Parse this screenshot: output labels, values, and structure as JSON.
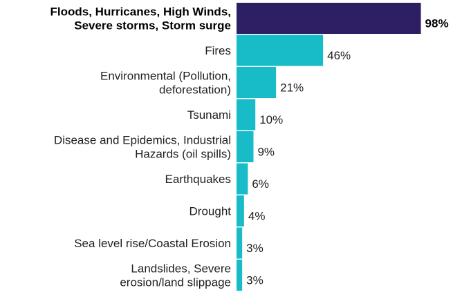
{
  "chart_data": {
    "type": "bar",
    "orientation": "horizontal",
    "categories": [
      [
        "Floods, Hurricanes, High Winds,",
        "Severe storms, Storm surge"
      ],
      [
        "Fires"
      ],
      [
        "Environmental (Pollution,",
        "deforestation)"
      ],
      [
        "Tsunami"
      ],
      [
        "Disease and Epidemics, Industrial",
        "Hazards (oil spills)"
      ],
      [
        "Earthquakes"
      ],
      [
        "Drought"
      ],
      [
        "Sea level rise/Coastal Erosion"
      ],
      [
        "Landslides, Severe",
        "erosion/land slippage"
      ]
    ],
    "values": [
      98,
      46,
      21,
      10,
      9,
      6,
      4,
      3,
      3
    ],
    "value_labels": [
      "98%",
      "46%",
      "21%",
      "10%",
      "9%",
      "6%",
      "4%",
      "3%",
      "3%"
    ],
    "highlight_index": 0,
    "xlim": [
      0,
      100
    ],
    "grid": false,
    "legend": "none",
    "colors": {
      "highlight": "#2e1e63",
      "default": "#17bcc8"
    }
  }
}
